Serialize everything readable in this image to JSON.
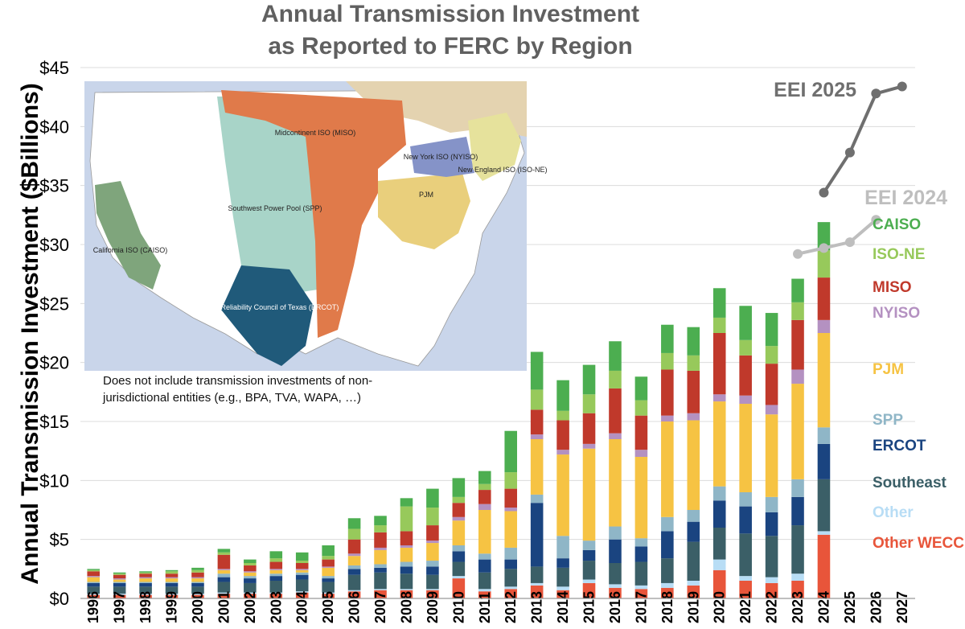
{
  "chart_data": {
    "type": "bar",
    "stacked": true,
    "title_lines": [
      "Annual Transmission Investment",
      "as Reported to FERC by Region"
    ],
    "ylabel": "Annual Transmission Investment ($Billions)",
    "ylim": [
      0,
      45
    ],
    "yticks": [
      "$0",
      "$5",
      "$10",
      "$15",
      "$20",
      "$25",
      "$30",
      "$35",
      "$40",
      "$45"
    ],
    "ytick_values": [
      0,
      5,
      10,
      15,
      20,
      25,
      30,
      35,
      40,
      45
    ],
    "grid": true,
    "categories": [
      "1996",
      "1997",
      "1998",
      "1999",
      "2000",
      "2001",
      "2002",
      "2003",
      "2004",
      "2005",
      "2006",
      "2007",
      "2008",
      "2009",
      "2010",
      "2011",
      "2012",
      "2013",
      "2014",
      "2015",
      "2016",
      "2017",
      "2018",
      "2019",
      "2020",
      "2021",
      "2022",
      "2023",
      "2024",
      "2025",
      "2026",
      "2027"
    ],
    "series": [
      {
        "name": "Other WECC",
        "color": "#E8553A",
        "values": [
          0.3,
          0.3,
          0.3,
          0.3,
          0.3,
          0.4,
          0.4,
          0.4,
          0.5,
          0.4,
          0.6,
          0.7,
          0.7,
          0.7,
          1.7,
          0.6,
          0.8,
          1.1,
          0.7,
          1.3,
          0.9,
          0.8,
          0.9,
          1.1,
          2.4,
          1.5,
          1.3,
          1.5,
          5.4,
          0,
          0,
          0
        ]
      },
      {
        "name": "Other",
        "color": "#B8DDF5",
        "values": [
          0.1,
          0.1,
          0.1,
          0.1,
          0.1,
          0.1,
          0.1,
          0.1,
          0.1,
          0.1,
          0.1,
          0.1,
          0.1,
          0.1,
          0.2,
          0.2,
          0.2,
          0.2,
          0.3,
          0.3,
          0.3,
          0.3,
          0.4,
          0.4,
          0.9,
          0.4,
          0.5,
          0.6,
          0.3,
          0,
          0,
          0
        ]
      },
      {
        "name": "Southeast",
        "color": "#3B5F67",
        "values": [
          0.6,
          0.6,
          0.6,
          0.6,
          0.6,
          0.9,
          0.8,
          1.0,
          1.0,
          0.9,
          1.3,
          1.4,
          1.3,
          1.2,
          1.2,
          1.4,
          1.5,
          1.4,
          1.6,
          1.6,
          1.8,
          2.0,
          2.1,
          3.3,
          2.7,
          3.6,
          3.5,
          4.1,
          4.4,
          0,
          0,
          0
        ]
      },
      {
        "name": "ERCOT",
        "color": "#1A4480",
        "values": [
          0.3,
          0.3,
          0.3,
          0.3,
          0.3,
          0.4,
          0.4,
          0.4,
          0.4,
          0.3,
          0.5,
          0.4,
          0.6,
          0.7,
          0.9,
          1.1,
          0.8,
          5.4,
          0.8,
          0.9,
          2.0,
          1.3,
          2.3,
          1.7,
          2.3,
          2.3,
          2.0,
          2.4,
          3.0,
          0,
          0,
          0
        ]
      },
      {
        "name": "SPP",
        "color": "#8FB6C7",
        "values": [
          0.1,
          0.1,
          0.1,
          0.1,
          0.1,
          0.3,
          0.2,
          0.2,
          0.2,
          0.2,
          0.3,
          0.3,
          0.4,
          0.5,
          0.5,
          0.5,
          1.0,
          0.7,
          1.9,
          0.8,
          1.1,
          0.7,
          1.2,
          1.0,
          1.2,
          1.2,
          1.3,
          1.5,
          1.4,
          0,
          0,
          0
        ]
      },
      {
        "name": "PJM",
        "color": "#F6C343",
        "values": [
          0.4,
          0.2,
          0.3,
          0.3,
          0.3,
          0.3,
          0.3,
          0.3,
          0.2,
          0.7,
          0.8,
          1.2,
          1.2,
          1.5,
          2.1,
          3.7,
          3.1,
          4.7,
          6.9,
          7.8,
          7.4,
          6.9,
          8.1,
          7.6,
          7.2,
          7.5,
          7.0,
          8.1,
          8.0,
          0,
          0,
          0
        ]
      },
      {
        "name": "NYISO",
        "color": "#B491C1",
        "values": [
          0.1,
          0.1,
          0.1,
          0.1,
          0.1,
          0.1,
          0.1,
          0.1,
          0.1,
          0.1,
          0.2,
          0.2,
          0.2,
          0.2,
          0.3,
          0.5,
          0.3,
          0.4,
          0.4,
          0.4,
          0.5,
          0.6,
          0.5,
          0.6,
          0.6,
          0.7,
          0.8,
          1.2,
          1.1,
          0,
          0,
          0
        ]
      },
      {
        "name": "MISO",
        "color": "#C0392B",
        "values": [
          0.4,
          0.3,
          0.3,
          0.3,
          0.4,
          1.2,
          0.5,
          0.6,
          0.5,
          0.6,
          1.2,
          1.3,
          1.2,
          1.3,
          1.2,
          1.2,
          1.6,
          2.1,
          2.5,
          2.6,
          3.8,
          2.9,
          3.9,
          3.6,
          5.2,
          3.4,
          3.5,
          4.2,
          3.6,
          0,
          0,
          0
        ]
      },
      {
        "name": "ISO-NE",
        "color": "#97C95B",
        "values": [
          0.1,
          0.1,
          0.1,
          0.2,
          0.2,
          0.2,
          0.2,
          0.3,
          0.2,
          0.3,
          0.9,
          0.6,
          2.1,
          1.5,
          0.5,
          0.5,
          1.4,
          1.7,
          0.8,
          1.6,
          1.5,
          1.3,
          1.4,
          1.3,
          1.3,
          1.3,
          1.5,
          1.5,
          2.3,
          0,
          0,
          0
        ]
      },
      {
        "name": "CAISO",
        "color": "#4CAE50",
        "values": [
          0.1,
          0.1,
          0.1,
          0.1,
          0.2,
          0.3,
          0.3,
          0.6,
          0.7,
          0.9,
          0.9,
          0.8,
          0.7,
          1.6,
          1.6,
          1.1,
          3.5,
          3.2,
          2.6,
          2.5,
          2.5,
          2.0,
          2.4,
          2.4,
          2.5,
          2.9,
          2.8,
          2.0,
          2.4,
          0,
          0,
          0
        ]
      }
    ],
    "lines": [
      {
        "name": "EEI 2025",
        "color": "#6F6F6F",
        "x": [
          "2024",
          "2025",
          "2026",
          "2027"
        ],
        "values": [
          34.4,
          37.8,
          42.8,
          43.4
        ]
      },
      {
        "name": "EEI 2024",
        "color": "#BEBEBE",
        "x": [
          "2023",
          "2024",
          "2025",
          "2026"
        ],
        "values": [
          29.2,
          29.7,
          30.2,
          32.1
        ]
      }
    ],
    "annotations": {
      "note": "Does not include transmission investments of non-jurisdictional entities (e.g., BPA, TVA, WAPA, …)",
      "map_labels": [
        "Midcontinent ISO (MISO)",
        "New York ISO (NYISO)",
        "New England ISO (ISO-NE)",
        "PJM",
        "Southwest Power Pool (SPP)",
        "California ISO (CAISO)",
        "Electric Reliability Council of Texas (ERCOT)"
      ]
    }
  }
}
